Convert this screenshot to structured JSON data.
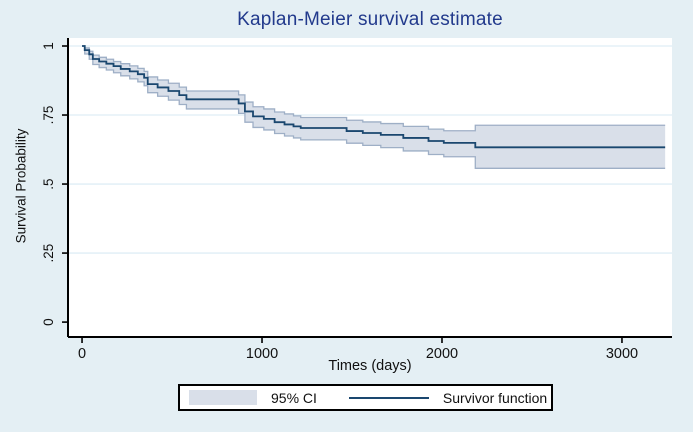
{
  "chart_data": {
    "type": "line",
    "subtype": "kaplan-meier-step-with-confidence-band",
    "title": "Kaplan-Meier survival estimate",
    "xlabel": "Times (days)",
    "ylabel": "Survival Probability",
    "x_ticks": [
      0,
      1000,
      2000,
      3000
    ],
    "x_tick_labels": [
      "0",
      "1000",
      "2000",
      "3000"
    ],
    "y_ticks": [
      0,
      0.25,
      0.5,
      0.75,
      1
    ],
    "y_tick_labels": [
      "0",
      ".25",
      ".5",
      ".75",
      "1"
    ],
    "xlim": [
      -78,
      3278
    ],
    "ylim": [
      -0.054,
      1.029
    ],
    "grid": "horizontal-lines-at-nonzero-yticks",
    "legend_position": "bottom-center",
    "end_time": 3240,
    "series": [
      {
        "name": "Survivor function",
        "type": "step-line"
      },
      {
        "name": "95% CI",
        "type": "step-band"
      }
    ],
    "points_format": [
      "time_days",
      "survival",
      "ci_lower",
      "ci_upper"
    ],
    "points": [
      [
        0,
        1.0,
        1.0,
        1.0
      ],
      [
        15,
        0.985,
        0.971,
        0.993
      ],
      [
        40,
        0.97,
        0.952,
        0.981
      ],
      [
        60,
        0.953,
        0.933,
        0.967
      ],
      [
        95,
        0.944,
        0.922,
        0.959
      ],
      [
        135,
        0.936,
        0.913,
        0.952
      ],
      [
        175,
        0.927,
        0.903,
        0.944
      ],
      [
        215,
        0.917,
        0.892,
        0.936
      ],
      [
        265,
        0.908,
        0.881,
        0.928
      ],
      [
        310,
        0.898,
        0.87,
        0.919
      ],
      [
        345,
        0.885,
        0.856,
        0.908
      ],
      [
        365,
        0.862,
        0.831,
        0.888
      ],
      [
        420,
        0.85,
        0.818,
        0.877
      ],
      [
        480,
        0.837,
        0.804,
        0.865
      ],
      [
        540,
        0.822,
        0.788,
        0.851
      ],
      [
        580,
        0.807,
        0.772,
        0.837
      ],
      [
        870,
        0.792,
        0.756,
        0.823
      ],
      [
        905,
        0.763,
        0.724,
        0.797
      ],
      [
        950,
        0.745,
        0.705,
        0.78
      ],
      [
        1010,
        0.736,
        0.696,
        0.772
      ],
      [
        1070,
        0.724,
        0.683,
        0.761
      ],
      [
        1125,
        0.716,
        0.674,
        0.754
      ],
      [
        1175,
        0.709,
        0.667,
        0.747
      ],
      [
        1215,
        0.703,
        0.66,
        0.741
      ],
      [
        1470,
        0.692,
        0.648,
        0.731
      ],
      [
        1560,
        0.685,
        0.64,
        0.725
      ],
      [
        1660,
        0.678,
        0.632,
        0.719
      ],
      [
        1785,
        0.667,
        0.62,
        0.709
      ],
      [
        1925,
        0.656,
        0.607,
        0.699
      ],
      [
        2010,
        0.649,
        0.599,
        0.693
      ],
      [
        2185,
        0.633,
        0.557,
        0.713
      ]
    ]
  },
  "legend": {
    "ci_label": "95% CI",
    "line_label": "Survivor function"
  },
  "colors": {
    "background": "#e4eff4",
    "plot_background": "#ffffff",
    "title": "#223a8c",
    "survivor_line": "#1a476f",
    "ci_fill": "#d9dfe9",
    "ci_edge": "#9eafc6",
    "grid": "#dfedf5",
    "axis": "#000000",
    "tick_text": "#111111",
    "legend_border": "#000000",
    "legend_background": "#ffffff"
  }
}
